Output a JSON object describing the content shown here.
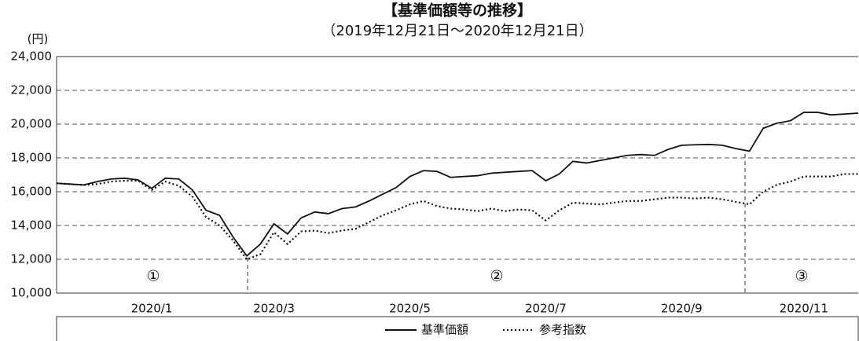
{
  "chart_data": {
    "type": "line",
    "title": "【基準価額等の推移】",
    "subtitle": "（2019年12月21日～2020年12月21日）",
    "y_unit": "(円)",
    "categories": [
      null,
      null,
      null,
      null,
      null,
      null,
      null,
      "2020/1",
      null,
      null,
      null,
      null,
      null,
      null,
      null,
      null,
      "2020/3",
      null,
      null,
      null,
      null,
      null,
      null,
      null,
      null,
      null,
      "2020/5",
      null,
      null,
      null,
      null,
      null,
      null,
      null,
      null,
      null,
      "2020/7",
      null,
      null,
      null,
      null,
      null,
      null,
      null,
      null,
      null,
      "2020/9",
      null,
      null,
      null,
      null,
      null,
      null,
      null,
      null,
      "2020/11",
      null,
      null,
      null,
      null
    ],
    "series": [
      {
        "name": "基準価額",
        "color": "#111111",
        "style": "solid",
        "values": [
          16500,
          16450,
          16400,
          16600,
          16750,
          16800,
          16700,
          16200,
          16800,
          16750,
          16100,
          14900,
          14600,
          13300,
          12200,
          12900,
          14100,
          13500,
          14450,
          14800,
          14700,
          15000,
          15100,
          15450,
          15850,
          16250,
          16900,
          17250,
          17200,
          16850,
          16900,
          16950,
          17100,
          17150,
          17200,
          17250,
          16650,
          17050,
          17800,
          17700,
          17850,
          18000,
          18150,
          18200,
          18150,
          18500,
          18750,
          18780,
          18800,
          18750,
          18550,
          18400,
          19750,
          20050,
          20200,
          20700,
          20700,
          20550,
          20600,
          20650
        ]
      },
      {
        "name": "参考指数",
        "color": "#111111",
        "style": "dotted",
        "values": [
          16500,
          16450,
          16400,
          16450,
          16600,
          16650,
          16650,
          16100,
          16600,
          16350,
          15700,
          14500,
          14000,
          13100,
          12000,
          12300,
          13600,
          12900,
          13650,
          13700,
          13550,
          13700,
          13800,
          14200,
          14600,
          14900,
          15250,
          15450,
          15150,
          15000,
          14950,
          14850,
          15000,
          14850,
          14950,
          14900,
          14300,
          14900,
          15350,
          15300,
          15250,
          15350,
          15450,
          15450,
          15550,
          15650,
          15650,
          15600,
          15650,
          15550,
          15400,
          15250,
          16000,
          16400,
          16600,
          16900,
          16900,
          16900,
          17050,
          17050
        ]
      }
    ],
    "ylim": [
      10000,
      24000
    ],
    "yticks": [
      {
        "value": 10000,
        "label": "10,000"
      },
      {
        "value": 12000,
        "label": "12,000"
      },
      {
        "value": 14000,
        "label": "14,000"
      },
      {
        "value": 16000,
        "label": "16,000"
      },
      {
        "value": 18000,
        "label": "18,000"
      },
      {
        "value": 20000,
        "label": "20,000"
      },
      {
        "value": 22000,
        "label": "22,000"
      },
      {
        "value": 24000,
        "label": "24,000"
      }
    ],
    "grid": true,
    "annotations": [
      "①",
      "②",
      "③"
    ]
  }
}
